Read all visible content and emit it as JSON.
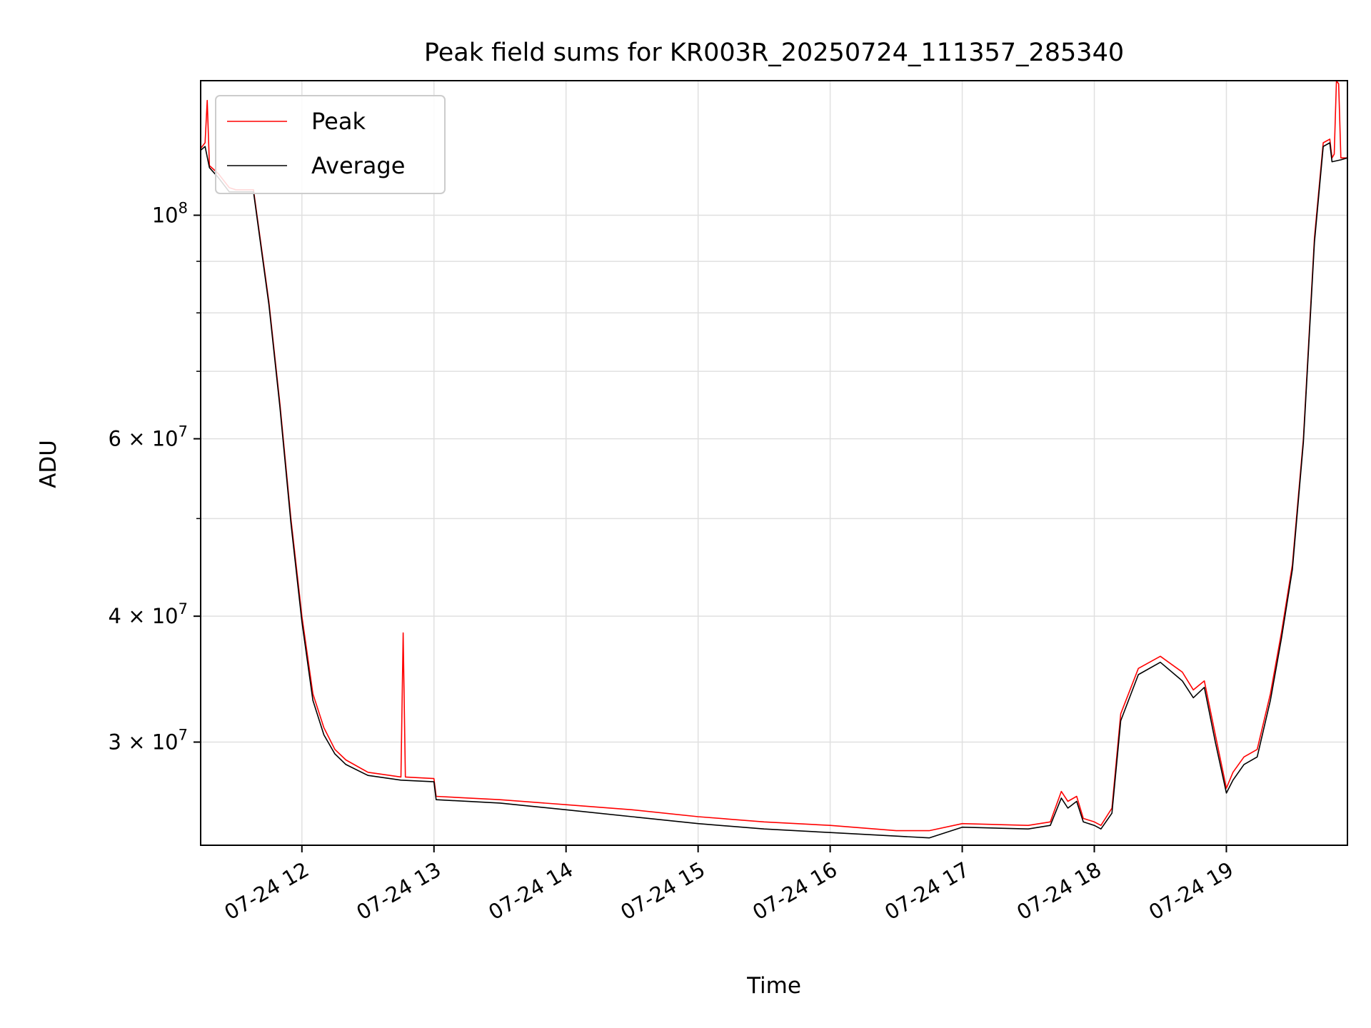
{
  "chart_data": {
    "type": "line",
    "title": "Peak field sums for KR003R_20250724_111357_285340",
    "xlabel": "Time",
    "ylabel": "ADU",
    "yscale": "log",
    "xlim": [
      "2025-07-24 11:14",
      "2025-07-24 19:55"
    ],
    "ylim": [
      23700000,
      136000000
    ],
    "grid": true,
    "legend_position": "top-left",
    "x_ticks": [
      {
        "value": "2025-07-24 12:00",
        "label": "07-24 12"
      },
      {
        "value": "2025-07-24 13:00",
        "label": "07-24 13"
      },
      {
        "value": "2025-07-24 14:00",
        "label": "07-24 14"
      },
      {
        "value": "2025-07-24 15:00",
        "label": "07-24 15"
      },
      {
        "value": "2025-07-24 16:00",
        "label": "07-24 16"
      },
      {
        "value": "2025-07-24 17:00",
        "label": "07-24 17"
      },
      {
        "value": "2025-07-24 18:00",
        "label": "07-24 18"
      },
      {
        "value": "2025-07-24 19:00",
        "label": "07-24 19"
      }
    ],
    "y_major_ticks": [
      {
        "value": 100000000,
        "base": "10",
        "exp": "8"
      },
      {
        "value": 60000000,
        "base": "6 × 10",
        "exp": "7"
      },
      {
        "value": 40000000,
        "base": "4 × 10",
        "exp": "7"
      },
      {
        "value": 30000000,
        "base": "3 × 10",
        "exp": "7"
      }
    ],
    "y_minor_ticks": [
      50000000,
      70000000,
      80000000,
      90000000
    ],
    "series": [
      {
        "name": "Peak",
        "color": "#ff0000",
        "points": [
          [
            "2025-07-24 11:14",
            116500000
          ],
          [
            "2025-07-24 11:16",
            118000000
          ],
          [
            "2025-07-24 11:17",
            130000000
          ],
          [
            "2025-07-24 11:18",
            112000000
          ],
          [
            "2025-07-24 11:22",
            110000000
          ],
          [
            "2025-07-24 11:27",
            106500000
          ],
          [
            "2025-07-24 11:30",
            106000000
          ],
          [
            "2025-07-24 11:38",
            106000000
          ],
          [
            "2025-07-24 11:45",
            82000000
          ],
          [
            "2025-07-24 11:50",
            65000000
          ],
          [
            "2025-07-24 11:55",
            50000000
          ],
          [
            "2025-07-24 12:00",
            40000000
          ],
          [
            "2025-07-24 12:05",
            33500000
          ],
          [
            "2025-07-24 12:10",
            31000000
          ],
          [
            "2025-07-24 12:15",
            29500000
          ],
          [
            "2025-07-24 12:20",
            28800000
          ],
          [
            "2025-07-24 12:30",
            28000000
          ],
          [
            "2025-07-24 12:40",
            27800000
          ],
          [
            "2025-07-24 12:45",
            27700000
          ],
          [
            "2025-07-24 12:46",
            38500000
          ],
          [
            "2025-07-24 12:47",
            27700000
          ],
          [
            "2025-07-24 13:00",
            27600000
          ],
          [
            "2025-07-24 13:01",
            26500000
          ],
          [
            "2025-07-24 13:30",
            26300000
          ],
          [
            "2025-07-24 14:00",
            26000000
          ],
          [
            "2025-07-24 14:30",
            25700000
          ],
          [
            "2025-07-24 15:00",
            25300000
          ],
          [
            "2025-07-24 15:30",
            25000000
          ],
          [
            "2025-07-24 16:00",
            24800000
          ],
          [
            "2025-07-24 16:30",
            24500000
          ],
          [
            "2025-07-24 16:45",
            24500000
          ],
          [
            "2025-07-24 17:00",
            24900000
          ],
          [
            "2025-07-24 17:30",
            24800000
          ],
          [
            "2025-07-24 17:40",
            25000000
          ],
          [
            "2025-07-24 17:45",
            26800000
          ],
          [
            "2025-07-24 17:48",
            26200000
          ],
          [
            "2025-07-24 17:52",
            26500000
          ],
          [
            "2025-07-24 17:55",
            25200000
          ],
          [
            "2025-07-24 18:00",
            25000000
          ],
          [
            "2025-07-24 18:03",
            24800000
          ],
          [
            "2025-07-24 18:08",
            25800000
          ],
          [
            "2025-07-24 18:12",
            32000000
          ],
          [
            "2025-07-24 18:20",
            35500000
          ],
          [
            "2025-07-24 18:30",
            36500000
          ],
          [
            "2025-07-24 18:40",
            35200000
          ],
          [
            "2025-07-24 18:45",
            33800000
          ],
          [
            "2025-07-24 18:50",
            34500000
          ],
          [
            "2025-07-24 18:55",
            30500000
          ],
          [
            "2025-07-24 19:00",
            27000000
          ],
          [
            "2025-07-24 19:03",
            28000000
          ],
          [
            "2025-07-24 19:08",
            29000000
          ],
          [
            "2025-07-24 19:14",
            29500000
          ],
          [
            "2025-07-24 19:20",
            33500000
          ],
          [
            "2025-07-24 19:25",
            38500000
          ],
          [
            "2025-07-24 19:30",
            45000000
          ],
          [
            "2025-07-24 19:35",
            60000000
          ],
          [
            "2025-07-24 19:40",
            95000000
          ],
          [
            "2025-07-24 19:44",
            118000000
          ],
          [
            "2025-07-24 19:47",
            119000000
          ],
          [
            "2025-07-24 19:48",
            114000000
          ],
          [
            "2025-07-24 19:49",
            115000000
          ],
          [
            "2025-07-24 19:50",
            136000000
          ],
          [
            "2025-07-24 19:51",
            135000000
          ],
          [
            "2025-07-24 19:52",
            114000000
          ],
          [
            "2025-07-24 19:55",
            114000000
          ]
        ]
      },
      {
        "name": "Average",
        "color": "#000000",
        "points": [
          [
            "2025-07-24 11:14",
            116000000
          ],
          [
            "2025-07-24 11:16",
            117000000
          ],
          [
            "2025-07-24 11:18",
            111500000
          ],
          [
            "2025-07-24 11:22",
            109000000
          ],
          [
            "2025-07-24 11:27",
            105500000
          ],
          [
            "2025-07-24 11:30",
            105500000
          ],
          [
            "2025-07-24 11:38",
            105500000
          ],
          [
            "2025-07-24 11:45",
            81500000
          ],
          [
            "2025-07-24 11:50",
            64500000
          ],
          [
            "2025-07-24 11:55",
            49500000
          ],
          [
            "2025-07-24 12:00",
            39500000
          ],
          [
            "2025-07-24 12:05",
            33000000
          ],
          [
            "2025-07-24 12:10",
            30500000
          ],
          [
            "2025-07-24 12:15",
            29200000
          ],
          [
            "2025-07-24 12:20",
            28500000
          ],
          [
            "2025-07-24 12:30",
            27800000
          ],
          [
            "2025-07-24 12:45",
            27500000
          ],
          [
            "2025-07-24 13:00",
            27400000
          ],
          [
            "2025-07-24 13:01",
            26300000
          ],
          [
            "2025-07-24 13:30",
            26100000
          ],
          [
            "2025-07-24 14:00",
            25700000
          ],
          [
            "2025-07-24 14:30",
            25300000
          ],
          [
            "2025-07-24 15:00",
            24900000
          ],
          [
            "2025-07-24 15:30",
            24600000
          ],
          [
            "2025-07-24 16:00",
            24400000
          ],
          [
            "2025-07-24 16:30",
            24200000
          ],
          [
            "2025-07-24 16:45",
            24100000
          ],
          [
            "2025-07-24 17:00",
            24700000
          ],
          [
            "2025-07-24 17:30",
            24600000
          ],
          [
            "2025-07-24 17:40",
            24800000
          ],
          [
            "2025-07-24 17:45",
            26400000
          ],
          [
            "2025-07-24 17:48",
            25800000
          ],
          [
            "2025-07-24 17:52",
            26200000
          ],
          [
            "2025-07-24 17:55",
            25000000
          ],
          [
            "2025-07-24 18:00",
            24800000
          ],
          [
            "2025-07-24 18:03",
            24600000
          ],
          [
            "2025-07-24 18:08",
            25500000
          ],
          [
            "2025-07-24 18:12",
            31500000
          ],
          [
            "2025-07-24 18:20",
            35000000
          ],
          [
            "2025-07-24 18:30",
            36000000
          ],
          [
            "2025-07-24 18:40",
            34500000
          ],
          [
            "2025-07-24 18:45",
            33200000
          ],
          [
            "2025-07-24 18:50",
            34000000
          ],
          [
            "2025-07-24 18:55",
            30000000
          ],
          [
            "2025-07-24 19:00",
            26700000
          ],
          [
            "2025-07-24 19:03",
            27500000
          ],
          [
            "2025-07-24 19:08",
            28500000
          ],
          [
            "2025-07-24 19:14",
            29000000
          ],
          [
            "2025-07-24 19:20",
            33000000
          ],
          [
            "2025-07-24 19:25",
            38000000
          ],
          [
            "2025-07-24 19:30",
            44500000
          ],
          [
            "2025-07-24 19:35",
            59500000
          ],
          [
            "2025-07-24 19:40",
            94000000
          ],
          [
            "2025-07-24 19:44",
            117000000
          ],
          [
            "2025-07-24 19:47",
            118000000
          ],
          [
            "2025-07-24 19:48",
            113000000
          ],
          [
            "2025-07-24 19:52",
            113500000
          ],
          [
            "2025-07-24 19:55",
            114000000
          ]
        ]
      }
    ]
  }
}
